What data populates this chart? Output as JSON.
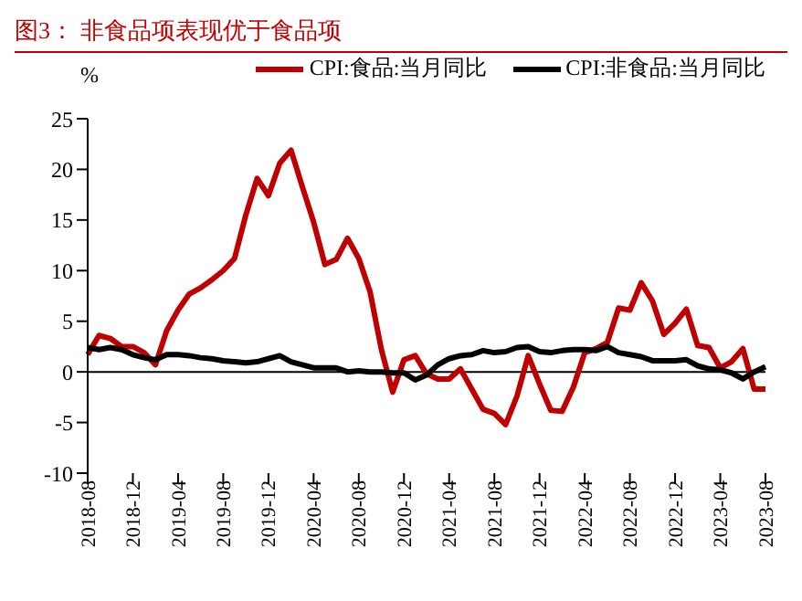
{
  "chart_data": {
    "type": "line",
    "title": "图3：  非食品项表现优于食品项",
    "ylabel": "%",
    "categories": [
      "2018-08",
      null,
      null,
      null,
      "2018-12",
      null,
      null,
      null,
      "2019-04",
      null,
      null,
      null,
      "2019-08",
      null,
      null,
      null,
      "2019-12",
      null,
      null,
      null,
      "2020-04",
      null,
      null,
      null,
      "2020-08",
      null,
      null,
      null,
      "2020-12",
      null,
      null,
      null,
      "2021-04",
      null,
      null,
      null,
      "2021-08",
      null,
      null,
      null,
      "2021-12",
      null,
      null,
      null,
      "2022-04",
      null,
      null,
      null,
      "2022-08",
      null,
      null,
      null,
      "2022-12",
      null,
      null,
      null,
      "2023-04",
      null,
      null,
      null,
      "2023-08"
    ],
    "series": [
      {
        "name": "CPI:食品:当月同比",
        "color": "#c00000",
        "values": [
          1.7,
          3.6,
          3.3,
          2.5,
          2.5,
          1.9,
          0.7,
          4.1,
          6.1,
          7.7,
          8.3,
          9.1,
          10.0,
          11.2,
          15.5,
          19.1,
          17.4,
          20.6,
          21.9,
          18.3,
          14.8,
          10.6,
          11.1,
          13.2,
          11.2,
          7.9,
          2.2,
          -2.0,
          1.2,
          1.6,
          -0.2,
          -0.7,
          -0.7,
          0.3,
          -1.7,
          -3.7,
          -4.1,
          -5.2,
          -2.4,
          1.6,
          -1.2,
          -3.8,
          -3.9,
          -1.5,
          1.9,
          2.3,
          2.9,
          6.3,
          6.1,
          8.8,
          7.0,
          3.7,
          4.8,
          6.2,
          2.6,
          2.4,
          0.4,
          1.0,
          2.3,
          -1.7,
          -1.7
        ]
      },
      {
        "name": "CPI:非食品:当月同比",
        "color": "#000000",
        "values": [
          2.4,
          2.2,
          2.4,
          2.2,
          1.7,
          1.4,
          1.2,
          1.7,
          1.7,
          1.6,
          1.4,
          1.3,
          1.1,
          1.0,
          0.9,
          1.0,
          1.3,
          1.6,
          1.0,
          0.7,
          0.4,
          0.4,
          0.4,
          0.0,
          0.1,
          0.0,
          0.0,
          -0.1,
          -0.1,
          -0.8,
          -0.3,
          0.7,
          1.3,
          1.6,
          1.7,
          2.1,
          1.9,
          2.0,
          2.4,
          2.5,
          2.0,
          1.9,
          2.1,
          2.2,
          2.2,
          2.1,
          2.5,
          1.9,
          1.7,
          1.5,
          1.1,
          1.1,
          1.1,
          1.2,
          0.6,
          0.3,
          0.2,
          -0.1,
          -0.7,
          0.0,
          0.5
        ]
      }
    ],
    "ylim": [
      -10,
      25
    ],
    "yticks": [
      -10,
      -5,
      0,
      5,
      10,
      15,
      20,
      25
    ],
    "ref_lines": [
      {
        "axis": "y",
        "value": 0,
        "color": "#000000"
      }
    ],
    "legend": "top",
    "marker": "none",
    "line_style": "solid"
  }
}
